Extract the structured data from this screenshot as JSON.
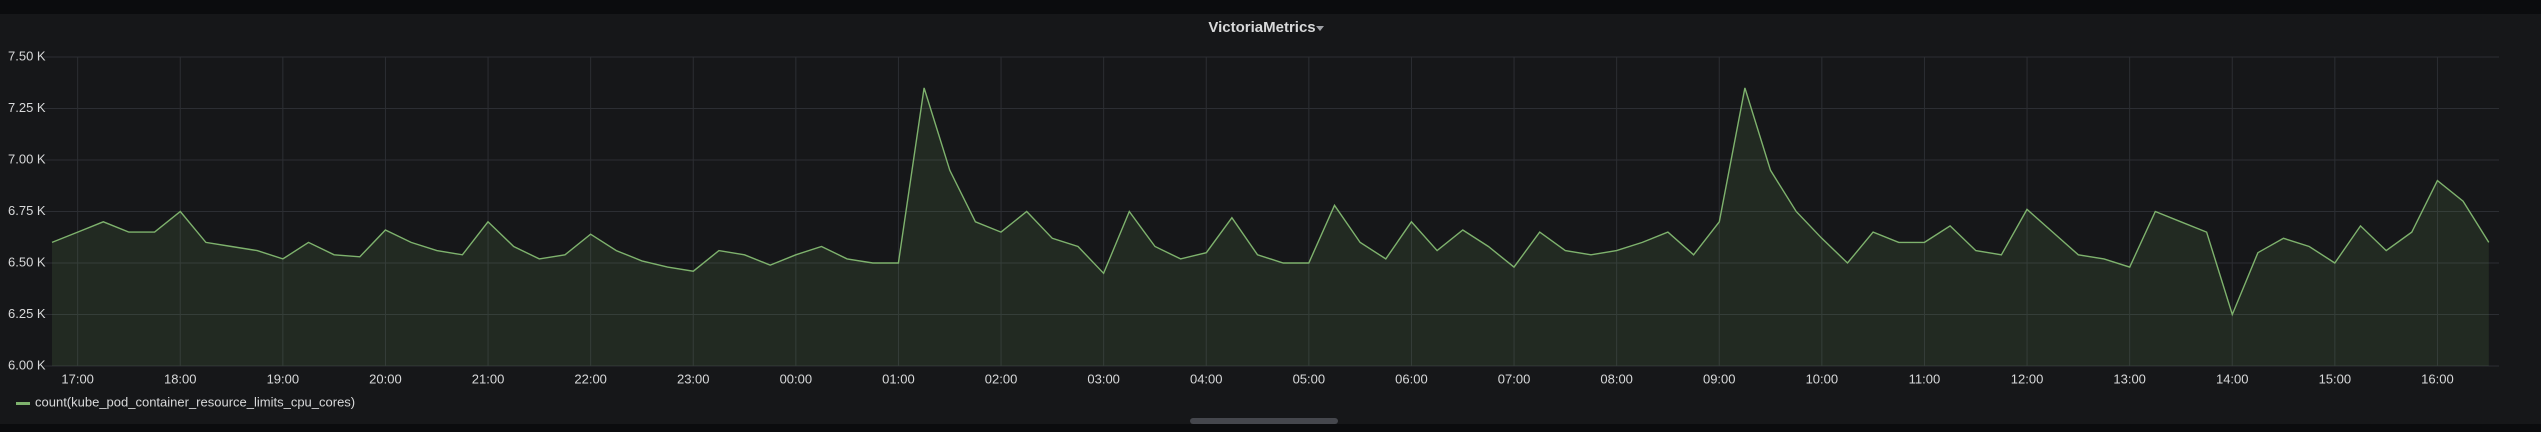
{
  "chart_data": {
    "type": "line",
    "title": "VictoriaMetrics",
    "categories": [
      null,
      "17:00",
      null,
      null,
      null,
      "18:00",
      null,
      null,
      null,
      "19:00",
      null,
      null,
      null,
      "20:00",
      null,
      null,
      null,
      "21:00",
      null,
      null,
      null,
      "22:00",
      null,
      null,
      null,
      "23:00",
      null,
      null,
      null,
      "00:00",
      null,
      null,
      null,
      "01:00",
      null,
      null,
      null,
      "02:00",
      null,
      null,
      null,
      "03:00",
      null,
      null,
      null,
      "04:00",
      null,
      null,
      null,
      "05:00",
      null,
      null,
      null,
      "06:00",
      null,
      null,
      null,
      "07:00",
      null,
      null,
      null,
      "08:00",
      null,
      null,
      null,
      "09:00",
      null,
      null,
      null,
      "10:00",
      null,
      null,
      null,
      "11:00",
      null,
      null,
      null,
      "12:00",
      null,
      null,
      null,
      "13:00",
      null,
      null,
      null,
      "14:00",
      null,
      null,
      null,
      "15:00",
      null,
      null,
      null,
      "16:00",
      null,
      null
    ],
    "series": [
      {
        "name": "count(kube_pod_container_resource_limits_cpu_cores)",
        "color": "#7eb26d",
        "values": [
          6600,
          6650,
          6700,
          6650,
          6650,
          6750,
          6600,
          6580,
          6560,
          6520,
          6600,
          6540,
          6530,
          6660,
          6600,
          6560,
          6540,
          6700,
          6580,
          6520,
          6540,
          6640,
          6560,
          6510,
          6480,
          6460,
          6560,
          6540,
          6490,
          6540,
          6580,
          6520,
          6500,
          6500,
          7350,
          6950,
          6700,
          6650,
          6750,
          6620,
          6580,
          6450,
          6750,
          6580,
          6520,
          6550,
          6720,
          6540,
          6500,
          6500,
          6780,
          6600,
          6520,
          6700,
          6560,
          6660,
          6580,
          6480,
          6650,
          6560,
          6540,
          6560,
          6600,
          6650,
          6540,
          6700,
          7350,
          6950,
          6750,
          6620,
          6500,
          6650,
          6600,
          6600,
          6680,
          6560,
          6540,
          6760,
          6650,
          6540,
          6520,
          6480,
          6750,
          6700,
          6650,
          6250,
          6550,
          6620,
          6580,
          6500,
          6680,
          6560,
          6650,
          6900,
          6800,
          6600
        ]
      }
    ],
    "ylim": [
      6000,
      7500
    ],
    "yticks": [
      {
        "value": 6000,
        "label": "6.00 K"
      },
      {
        "value": 6250,
        "label": "6.25 K"
      },
      {
        "value": 6500,
        "label": "6.50 K"
      },
      {
        "value": 6750,
        "label": "6.75 K"
      },
      {
        "value": 7000,
        "label": "7.00 K"
      },
      {
        "value": 7250,
        "label": "7.25 K"
      },
      {
        "value": 7500,
        "label": "7.50 K"
      }
    ],
    "grid": true
  }
}
